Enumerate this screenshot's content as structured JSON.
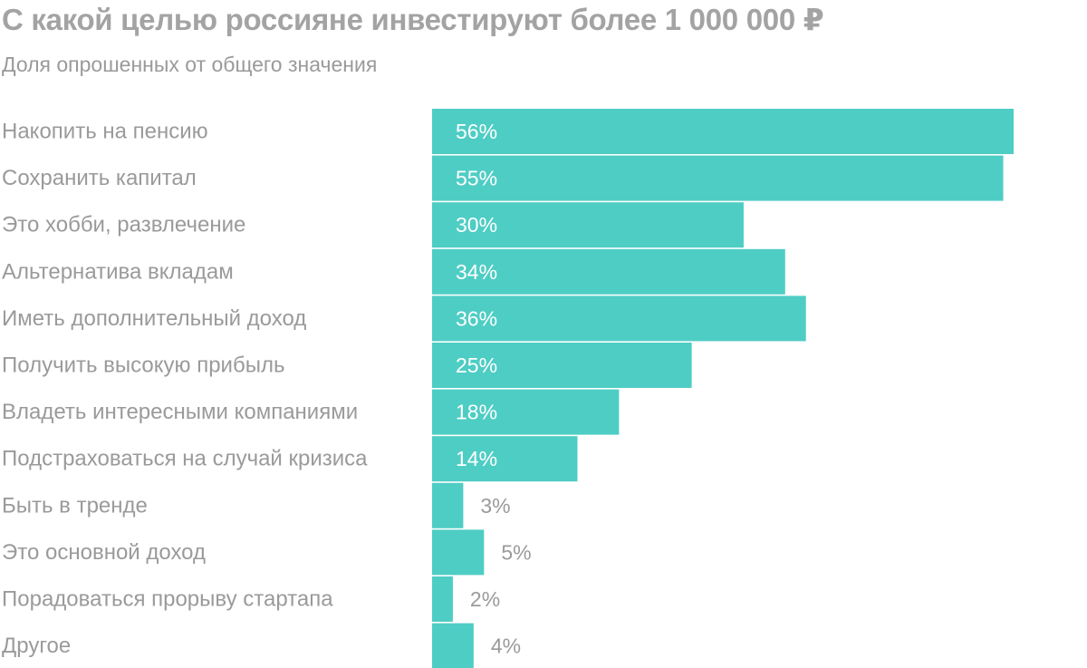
{
  "title": "С какой целью россияне инвестируют более 1 000 000 ₽",
  "subtitle": "Доля опрошенных от общего значения",
  "colors": {
    "bar": "#4ecdc4",
    "text": "#9a9a9a",
    "label_inside": "#ffffff"
  },
  "chart_data": {
    "type": "bar",
    "orientation": "horizontal",
    "title": "С какой целью россияне инвестируют более 1 000 000 ₽",
    "subtitle": "Доля опрошенных от общего значения",
    "categories": [
      "Накопить на пенсию",
      "Сохранить капитал",
      "Это хобби, развлечение",
      "Альтернатива вкладам",
      "Иметь дополнительный доход",
      "Получить высокую прибыль",
      "Владеть интересными компаниями",
      "Подстраховаться на случай кризиса",
      "Быть в тренде",
      "Это основной доход",
      "Порадоваться прорыву стартапа",
      "Другое"
    ],
    "values": [
      56,
      55,
      30,
      34,
      36,
      25,
      18,
      14,
      3,
      5,
      2,
      4
    ],
    "value_labels": [
      "56%",
      "55%",
      "30%",
      "34%",
      "36%",
      "25%",
      "18%",
      "14%",
      "3%",
      "5%",
      "2%",
      "4%"
    ],
    "unit": "%",
    "xlim": [
      0,
      56
    ],
    "grid": false,
    "legend": "none"
  }
}
